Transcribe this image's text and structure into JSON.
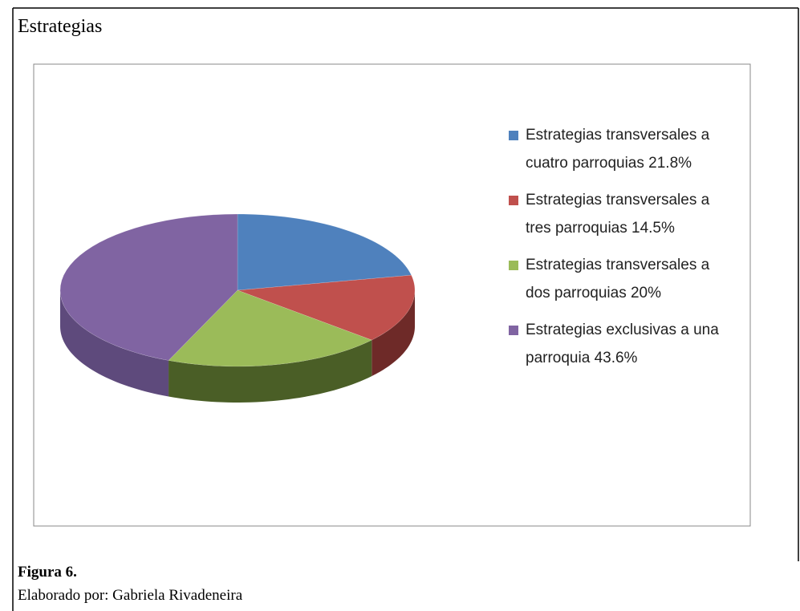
{
  "heading": "Estrategias",
  "chart_data": {
    "type": "pie",
    "categories": [
      "Estrategias transversales a cuatro parroquias",
      "Estrategias transversales a tres parroquias",
      "Estrategias transversales a dos parroquias",
      "Estrategias exclusivas a una parroquia"
    ],
    "values": [
      21.8,
      14.5,
      20,
      43.6
    ],
    "value_labels": [
      "21.8%",
      "14.5%",
      "20%",
      "43.6%"
    ],
    "colors": [
      "#4f81bd",
      "#c0504d",
      "#9bbb59",
      "#8064a2"
    ],
    "side_colors": [
      "#3a5f8c",
      "#6e2a28",
      "#4a5e26",
      "#5e4a7c"
    ],
    "legend": "right"
  },
  "caption": {
    "figure": "Figura 6.",
    "credit": "Elaborado por: Gabriela Rivadeneira"
  }
}
